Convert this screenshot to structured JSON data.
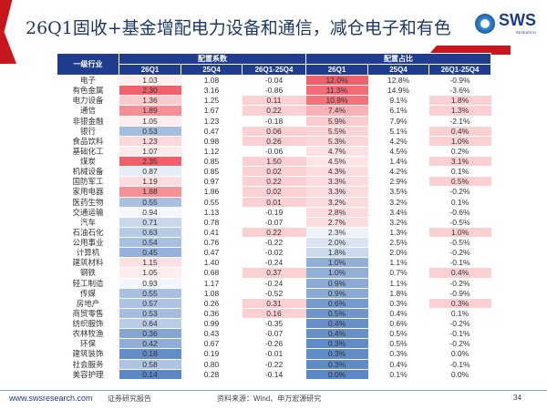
{
  "header": {
    "title": "26Q1固收+基金增配电力设备和通信，减仓电子和有色",
    "logo": "SWS",
    "logo_sub": "RESEARCH"
  },
  "table": {
    "col_industry": "一级行业",
    "group1": "配置系数",
    "group2": "配置占比",
    "subcols": [
      "26Q1",
      "25Q4",
      "26Q1-25Q4",
      "26Q1",
      "25Q4",
      "26Q1-25Q4"
    ],
    "rows": [
      [
        "电子",
        "1.03",
        "1.08",
        "-0.04",
        "12.0%",
        "12.8%",
        "-0.9%"
      ],
      [
        "有色金属",
        "2.30",
        "3.16",
        "-0.86",
        "11.3%",
        "14.9%",
        "-3.6%"
      ],
      [
        "电力设备",
        "1.36",
        "1.25",
        "0.11",
        "10.9%",
        "9.1%",
        "1.8%"
      ],
      [
        "通信",
        "1.89",
        "1.67",
        "0.22",
        "7.4%",
        "6.1%",
        "1.3%"
      ],
      [
        "非银金融",
        "1.05",
        "1.23",
        "-0.18",
        "5.9%",
        "7.9%",
        "-2.1%"
      ],
      [
        "银行",
        "0.53",
        "0.47",
        "0.06",
        "5.5%",
        "5.1%",
        "0.4%"
      ],
      [
        "食品饮料",
        "1.23",
        "0.98",
        "0.26",
        "5.3%",
        "4.2%",
        "1.0%"
      ],
      [
        "基础化工",
        "1.07",
        "1.12",
        "-0.06",
        "4.7%",
        "4.5%",
        "0.2%"
      ],
      [
        "煤炭",
        "2.35",
        "0.85",
        "1.50",
        "4.5%",
        "1.4%",
        "3.1%"
      ],
      [
        "机械设备",
        "0.87",
        "0.85",
        "0.02",
        "4.3%",
        "4.2%",
        "0.1%"
      ],
      [
        "国防军工",
        "1.19",
        "0.97",
        "0.22",
        "3.3%",
        "2.9%",
        "0.5%"
      ],
      [
        "家用电器",
        "1.88",
        "1.86",
        "0.02",
        "3.3%",
        "3.5%",
        "-0.2%"
      ],
      [
        "医药生物",
        "0.55",
        "0.55",
        "0.01",
        "3.2%",
        "3.2%",
        "0.1%"
      ],
      [
        "交通运输",
        "0.94",
        "1.13",
        "-0.19",
        "2.8%",
        "3.4%",
        "-0.6%"
      ],
      [
        "汽车",
        "0.71",
        "0.78",
        "-0.07",
        "2.7%",
        "3.2%",
        "-0.5%"
      ],
      [
        "石油石化",
        "0.63",
        "0.41",
        "0.22",
        "2.3%",
        "1.3%",
        "1.0%"
      ],
      [
        "公用事业",
        "0.54",
        "0.76",
        "-0.22",
        "2.0%",
        "2.5%",
        "-0.5%"
      ],
      [
        "计算机",
        "0.45",
        "0.47",
        "-0.02",
        "1.8%",
        "2.0%",
        "-0.2%"
      ],
      [
        "建筑材料",
        "1.15",
        "1.40",
        "-0.24",
        "1.0%",
        "1.1%",
        "-0.1%"
      ],
      [
        "钢铁",
        "1.05",
        "0.68",
        "0.37",
        "1.0%",
        "0.7%",
        "0.4%"
      ],
      [
        "轻工制造",
        "0.93",
        "1.17",
        "-0.24",
        "0.9%",
        "1.1%",
        "-0.2%"
      ],
      [
        "传媒",
        "0.55",
        "1.08",
        "-0.52",
        "0.9%",
        "1.8%",
        "-0.9%"
      ],
      [
        "房地产",
        "0.57",
        "0.26",
        "0.31",
        "0.6%",
        "0.3%",
        "0.3%"
      ],
      [
        "商贸零售",
        "0.53",
        "0.36",
        "0.16",
        "0.5%",
        "0.4%",
        "0.1%"
      ],
      [
        "纺织服饰",
        "0.64",
        "0.99",
        "-0.35",
        "0.4%",
        "0.6%",
        "-0.2%"
      ],
      [
        "农林牧渔",
        "0.36",
        "0.43",
        "-0.07",
        "0.4%",
        "0.5%",
        "-0.1%"
      ],
      [
        "环保",
        "0.42",
        "0.67",
        "-0.26",
        "0.3%",
        "0.5%",
        "-0.2%"
      ],
      [
        "建筑装饰",
        "0.18",
        "0.19",
        "-0.01",
        "0.3%",
        "0.3%",
        "0.0%"
      ],
      [
        "社会服务",
        "0.58",
        "0.80",
        "-0.22",
        "0.3%",
        "0.4%",
        "-0.1%"
      ],
      [
        "美容护理",
        "0.14",
        "0.28",
        "-0.14",
        "0.0%",
        "0.1%",
        "0.0%"
      ]
    ]
  },
  "colors": {
    "header_bg": "#1f3c8f",
    "high": "#f0606a",
    "low": "#5b87c5",
    "positive_diff": "#fbd0d3",
    "accent": "#c8161d"
  },
  "footer": {
    "url": "www.swsresearch.com",
    "doc_type": "证券研究报告",
    "source": "资料来源：Wind、申万宏源研究",
    "page": "34"
  }
}
